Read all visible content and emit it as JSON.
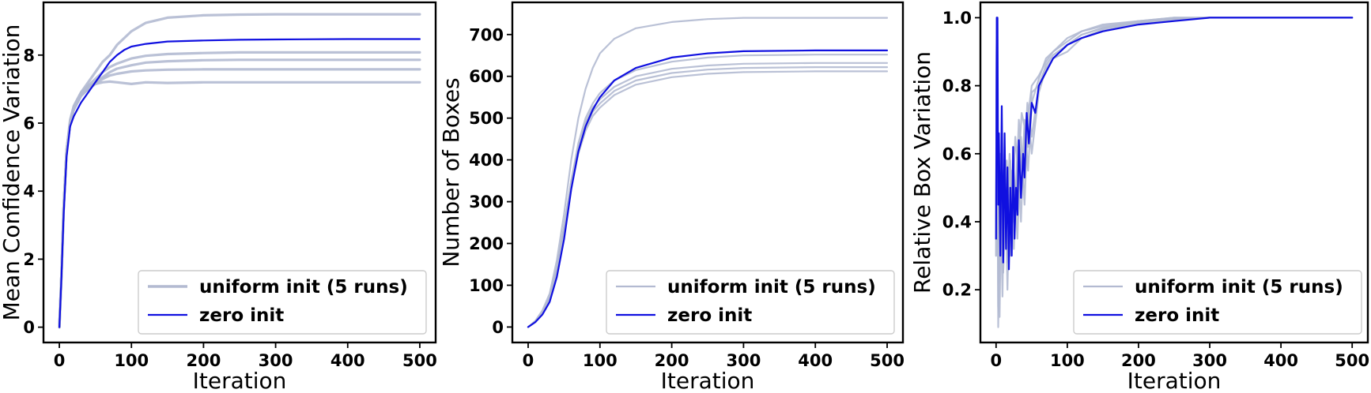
{
  "chart_data": [
    {
      "type": "line",
      "xlabel": "Iteration",
      "ylabel": "Mean Confidence Variation",
      "xlim": [
        -22,
        522
      ],
      "ylim": [
        -0.45,
        9.55
      ],
      "xticks": [
        0,
        100,
        200,
        300,
        400,
        500
      ],
      "yticks": [
        0,
        2,
        4,
        6,
        8
      ],
      "ytick_labels": [
        "0",
        "2",
        "4",
        "6",
        "8"
      ],
      "legend": {
        "position": "lower-right",
        "entries": [
          "uniform init (5 runs)",
          "zero init"
        ]
      },
      "colors": {
        "uniform": "#b3bad1",
        "zero": "#1010e0"
      },
      "series": [
        {
          "name": "uniform init (5 runs)",
          "x": [
            0,
            3,
            6,
            10,
            15,
            20,
            30,
            40,
            50,
            60,
            70,
            80,
            100,
            120,
            150,
            200,
            250,
            300,
            400,
            500
          ],
          "values": [
            0,
            1.6,
            3.5,
            5.2,
            6.1,
            6.5,
            6.9,
            7.2,
            7.5,
            7.8,
            8.0,
            8.3,
            8.7,
            8.95,
            9.1,
            9.17,
            9.19,
            9.2,
            9.2,
            9.2
          ]
        },
        {
          "name": "uniform init (5 runs)",
          "x": [
            0,
            3,
            6,
            10,
            15,
            20,
            30,
            40,
            50,
            60,
            70,
            80,
            100,
            120,
            150,
            200,
            250,
            300,
            400,
            500
          ],
          "values": [
            0,
            1.6,
            3.5,
            5.2,
            6.0,
            6.4,
            6.8,
            7.1,
            7.3,
            7.5,
            7.65,
            7.75,
            7.9,
            7.98,
            8.03,
            8.06,
            8.08,
            8.08,
            8.08,
            8.08
          ]
        },
        {
          "name": "uniform init (5 runs)",
          "x": [
            0,
            3,
            6,
            10,
            15,
            20,
            30,
            40,
            50,
            60,
            70,
            80,
            100,
            120,
            150,
            200,
            250,
            300,
            400,
            500
          ],
          "values": [
            0,
            1.6,
            3.5,
            5.2,
            6.0,
            6.4,
            6.8,
            7.0,
            7.2,
            7.35,
            7.5,
            7.6,
            7.7,
            7.78,
            7.82,
            7.85,
            7.86,
            7.86,
            7.86,
            7.86
          ]
        },
        {
          "name": "uniform init (5 runs)",
          "x": [
            0,
            3,
            6,
            10,
            15,
            20,
            30,
            40,
            50,
            60,
            70,
            80,
            100,
            120,
            150,
            200,
            250,
            300,
            400,
            500
          ],
          "values": [
            0,
            1.6,
            3.5,
            5.2,
            6.0,
            6.4,
            6.8,
            7.0,
            7.15,
            7.3,
            7.4,
            7.45,
            7.52,
            7.55,
            7.57,
            7.58,
            7.58,
            7.58,
            7.58,
            7.58
          ]
        },
        {
          "name": "uniform init (5 runs)",
          "x": [
            0,
            3,
            6,
            10,
            15,
            20,
            30,
            40,
            50,
            60,
            70,
            80,
            100,
            120,
            150,
            200,
            250,
            300,
            400,
            500
          ],
          "values": [
            0,
            1.6,
            3.5,
            5.2,
            6.0,
            6.5,
            6.9,
            7.1,
            7.15,
            7.2,
            7.22,
            7.2,
            7.15,
            7.2,
            7.18,
            7.2,
            7.2,
            7.2,
            7.2,
            7.2
          ]
        },
        {
          "name": "zero init",
          "x": [
            0,
            3,
            6,
            10,
            15,
            20,
            30,
            40,
            50,
            60,
            70,
            80,
            90,
            100,
            120,
            150,
            200,
            250,
            300,
            400,
            500
          ],
          "values": [
            0,
            1.5,
            3.3,
            5.0,
            5.9,
            6.2,
            6.6,
            6.9,
            7.2,
            7.5,
            7.8,
            8.0,
            8.15,
            8.25,
            8.33,
            8.4,
            8.43,
            8.45,
            8.46,
            8.47,
            8.47
          ]
        }
      ]
    },
    {
      "type": "line",
      "xlabel": "Iteration",
      "ylabel": "Number of Boxes",
      "xlim": [
        -22,
        522
      ],
      "ylim": [
        -37,
        777
      ],
      "xticks": [
        0,
        100,
        200,
        300,
        400,
        500
      ],
      "yticks": [
        0,
        100,
        200,
        300,
        400,
        500,
        600,
        700
      ],
      "ytick_labels": [
        "0",
        "100",
        "200",
        "300",
        "400",
        "500",
        "600",
        "700"
      ],
      "legend": {
        "position": "lower-right",
        "entries": [
          "uniform init (5 runs)",
          "zero init"
        ]
      },
      "colors": {
        "uniform": "#b3bad1",
        "zero": "#1010e0"
      },
      "series": [
        {
          "name": "uniform init (5 runs)",
          "x": [
            0,
            10,
            20,
            30,
            40,
            50,
            60,
            70,
            80,
            90,
            100,
            120,
            150,
            200,
            250,
            300,
            400,
            500
          ],
          "values": [
            0,
            15,
            40,
            80,
            160,
            270,
            400,
            500,
            570,
            620,
            655,
            690,
            715,
            730,
            737,
            740,
            740,
            740
          ]
        },
        {
          "name": "uniform init (5 runs)",
          "x": [
            0,
            10,
            20,
            30,
            40,
            50,
            60,
            70,
            80,
            90,
            100,
            120,
            150,
            200,
            250,
            300,
            400,
            500
          ],
          "values": [
            0,
            12,
            35,
            70,
            140,
            240,
            350,
            440,
            500,
            535,
            560,
            590,
            615,
            635,
            645,
            650,
            652,
            652
          ]
        },
        {
          "name": "uniform init (5 runs)",
          "x": [
            0,
            10,
            20,
            30,
            40,
            50,
            60,
            70,
            80,
            90,
            100,
            120,
            150,
            200,
            250,
            300,
            400,
            500
          ],
          "values": [
            0,
            12,
            35,
            70,
            140,
            240,
            350,
            430,
            490,
            525,
            545,
            575,
            600,
            618,
            626,
            630,
            632,
            632
          ]
        },
        {
          "name": "uniform init (5 runs)",
          "x": [
            0,
            10,
            20,
            30,
            40,
            50,
            60,
            70,
            80,
            90,
            100,
            120,
            150,
            200,
            250,
            300,
            400,
            500
          ],
          "values": [
            0,
            12,
            35,
            70,
            140,
            235,
            340,
            420,
            480,
            515,
            535,
            565,
            590,
            608,
            616,
            620,
            622,
            622
          ]
        },
        {
          "name": "uniform init (5 runs)",
          "x": [
            0,
            10,
            20,
            30,
            40,
            50,
            60,
            70,
            80,
            90,
            100,
            120,
            150,
            200,
            250,
            300,
            400,
            500
          ],
          "values": [
            0,
            12,
            33,
            68,
            135,
            230,
            335,
            415,
            470,
            505,
            525,
            555,
            580,
            598,
            606,
            610,
            612,
            612
          ]
        },
        {
          "name": "zero init",
          "x": [
            0,
            10,
            20,
            30,
            40,
            50,
            60,
            70,
            80,
            90,
            100,
            120,
            150,
            200,
            250,
            300,
            400,
            500
          ],
          "values": [
            0,
            12,
            30,
            60,
            120,
            210,
            330,
            420,
            480,
            520,
            550,
            590,
            620,
            645,
            655,
            660,
            662,
            662
          ]
        }
      ]
    },
    {
      "type": "line",
      "xlabel": "Iteration",
      "ylabel": "Relative Box Variation",
      "xlim": [
        -22,
        522
      ],
      "ylim": [
        0.0449,
        1.0451
      ],
      "xticks": [
        0,
        100,
        200,
        300,
        400,
        500
      ],
      "yticks": [
        0.2,
        0.4,
        0.6,
        0.8,
        1.0
      ],
      "ytick_labels": [
        "0.2",
        "0.4",
        "0.6",
        "0.8",
        "1.0"
      ],
      "legend": {
        "position": "lower-right",
        "entries": [
          "uniform init (5 runs)",
          "zero init"
        ]
      },
      "colors": {
        "uniform": "#b3bad1",
        "zero": "#1010e0"
      },
      "series": [
        {
          "name": "uniform init (5 runs)",
          "x": [
            0,
            1,
            2,
            3,
            5,
            8,
            10,
            15,
            20,
            25,
            30,
            35,
            40,
            45,
            50,
            60,
            70,
            80,
            100,
            120,
            150,
            200,
            250,
            300,
            400,
            500
          ],
          "values": [
            0.3,
            1.0,
            0.65,
            0.15,
            0.12,
            0.62,
            0.25,
            0.58,
            0.3,
            0.55,
            0.35,
            0.65,
            0.45,
            0.72,
            0.6,
            0.78,
            0.85,
            0.88,
            0.92,
            0.95,
            0.97,
            0.99,
            0.995,
            1.0,
            1.0,
            1.0
          ]
        },
        {
          "name": "uniform init (5 runs)",
          "x": [
            0,
            1,
            2,
            4,
            6,
            9,
            12,
            16,
            20,
            25,
            30,
            35,
            40,
            45,
            50,
            60,
            70,
            80,
            100,
            120,
            150,
            200,
            250,
            300,
            400,
            500
          ],
          "values": [
            0.35,
            1.0,
            0.55,
            0.22,
            0.5,
            0.18,
            0.6,
            0.28,
            0.5,
            0.32,
            0.6,
            0.4,
            0.7,
            0.55,
            0.75,
            0.82,
            0.88,
            0.9,
            0.93,
            0.96,
            0.98,
            0.99,
            1.0,
            1.0,
            1.0,
            1.0
          ]
        },
        {
          "name": "uniform init (5 runs)",
          "x": [
            0,
            1,
            2,
            4,
            7,
            10,
            14,
            18,
            22,
            26,
            30,
            35,
            40,
            45,
            50,
            60,
            70,
            80,
            100,
            120,
            150,
            200,
            250,
            300,
            400,
            500
          ],
          "values": [
            0.4,
            1.0,
            0.6,
            0.3,
            0.55,
            0.25,
            0.5,
            0.35,
            0.55,
            0.38,
            0.62,
            0.5,
            0.68,
            0.62,
            0.78,
            0.8,
            0.86,
            0.89,
            0.92,
            0.95,
            0.97,
            0.985,
            0.995,
            1.0,
            1.0,
            1.0
          ]
        },
        {
          "name": "uniform init (5 runs)",
          "x": [
            0,
            1,
            2,
            3,
            6,
            9,
            12,
            16,
            20,
            24,
            28,
            32,
            38,
            44,
            50,
            60,
            70,
            80,
            100,
            120,
            150,
            200,
            250,
            300,
            400,
            500
          ],
          "values": [
            0.3,
            1.0,
            0.7,
            0.09,
            0.45,
            0.3,
            0.62,
            0.2,
            0.58,
            0.4,
            0.48,
            0.7,
            0.5,
            0.75,
            0.65,
            0.8,
            0.84,
            0.88,
            0.9,
            0.94,
            0.965,
            0.985,
            0.995,
            1.0,
            1.0,
            1.0
          ]
        },
        {
          "name": "uniform init (5 runs)",
          "x": [
            0,
            1,
            2,
            4,
            6,
            8,
            11,
            15,
            19,
            23,
            27,
            31,
            36,
            42,
            50,
            60,
            70,
            80,
            100,
            120,
            150,
            200,
            250,
            300,
            400,
            500
          ],
          "values": [
            0.45,
            1.0,
            0.5,
            0.35,
            0.6,
            0.3,
            0.55,
            0.4,
            0.6,
            0.45,
            0.65,
            0.55,
            0.72,
            0.66,
            0.8,
            0.83,
            0.87,
            0.9,
            0.94,
            0.96,
            0.975,
            0.99,
            1.0,
            1.0,
            1.0,
            1.0
          ]
        },
        {
          "name": "zero init",
          "x": [
            0,
            1,
            2,
            3,
            4,
            6,
            8,
            10,
            12,
            14,
            16,
            18,
            20,
            22,
            24,
            26,
            28,
            30,
            32,
            35,
            38,
            40,
            43,
            46,
            50,
            55,
            60,
            70,
            80,
            90,
            100,
            120,
            150,
            200,
            250,
            300,
            400,
            500
          ],
          "values": [
            0.35,
            1.0,
            1.0,
            0.45,
            0.66,
            0.3,
            0.74,
            0.28,
            0.66,
            0.32,
            0.56,
            0.26,
            0.5,
            0.3,
            0.62,
            0.35,
            0.5,
            0.42,
            0.64,
            0.47,
            0.6,
            0.53,
            0.72,
            0.63,
            0.75,
            0.72,
            0.8,
            0.84,
            0.88,
            0.9,
            0.92,
            0.94,
            0.96,
            0.98,
            0.99,
            1.0,
            1.0,
            1.0
          ]
        }
      ]
    }
  ]
}
